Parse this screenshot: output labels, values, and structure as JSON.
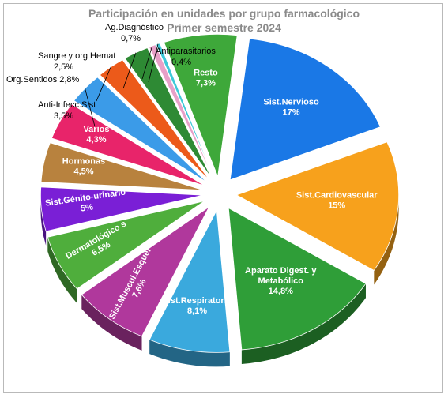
{
  "chart_data": {
    "type": "pie",
    "title": "Participación en unidades por grupo farmacológico",
    "subtitle": "Primer semestre 2024",
    "slices": [
      {
        "label": "Sist.Nervioso",
        "value_label": "17%",
        "value": 17,
        "color": "#1a78e6"
      },
      {
        "label": "Sist.Cardiovascular",
        "value_label": "15%",
        "value": 15,
        "color": "#f7a11c"
      },
      {
        "label": "Aparato Digest. y Metabólico",
        "value_label": "14,8%",
        "value": 14.8,
        "color": "#2f9e38"
      },
      {
        "label": "Sist.Respiratorio",
        "value_label": "8,1%",
        "value": 8.1,
        "color": "#3aa9dd"
      },
      {
        "label": "Sist.Muscul.Esquel",
        "value_label": "7,6%",
        "value": 7.6,
        "color": "#b0389c"
      },
      {
        "label": "Dermatológico s",
        "value_label": "6,5%",
        "value": 6.5,
        "color": "#4fae3c"
      },
      {
        "label": "Sist.Génito-urinario",
        "value_label": "5%",
        "value": 5,
        "color": "#7a1fd6"
      },
      {
        "label": "Hormonas",
        "value_label": "4,5%",
        "value": 4.5,
        "color": "#b8823e"
      },
      {
        "label": "Varios",
        "value_label": "4,3%",
        "value": 4.3,
        "color": "#e8246a"
      },
      {
        "label": "Anti-Infecc.Sist",
        "value_label": "3,5%",
        "value": 3.5,
        "color": "#3b9be8"
      },
      {
        "label": "Org.Sentidos",
        "value_label": "2,8%",
        "value": 2.8,
        "color": "#ec5a1a"
      },
      {
        "label": "Sangre y org Hemat",
        "value_label": "2,5%",
        "value": 2.5,
        "color": "#2e8a34"
      },
      {
        "label": "Ag.Diagnóstico",
        "value_label": "0,7%",
        "value": 0.7,
        "color": "#e8a0c8"
      },
      {
        "label": "Antiparasitarios",
        "value_label": "0,4%",
        "value": 0.4,
        "color": "#3dc8d8"
      },
      {
        "label": "Resto",
        "value_label": "7,3%",
        "value": 7.3,
        "color": "#3ea83a"
      }
    ]
  }
}
